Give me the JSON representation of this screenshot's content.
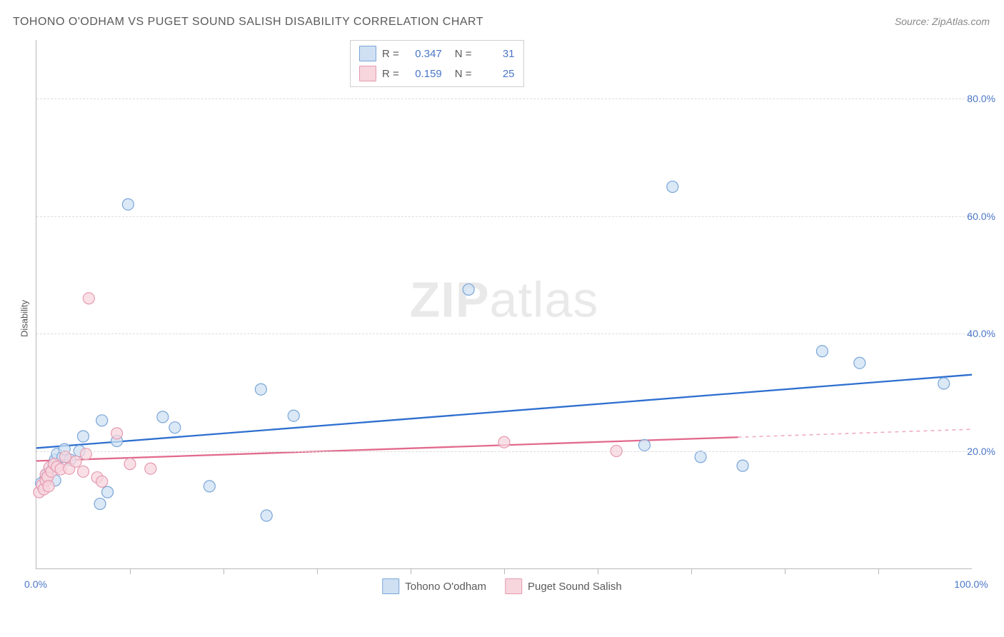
{
  "title": "TOHONO O'ODHAM VS PUGET SOUND SALISH DISABILITY CORRELATION CHART",
  "source": "Source: ZipAtlas.com",
  "yaxis_label": "Disability",
  "watermark": {
    "bold": "ZIP",
    "light": "atlas"
  },
  "chart": {
    "type": "scatter-with-regression",
    "xlim": [
      0,
      100
    ],
    "ylim": [
      0,
      90
    ],
    "ylabel_ticks": [
      20,
      40,
      60,
      80
    ],
    "ylabel_format_suffix": ".0%",
    "xlabel_ticks_pos": [
      0,
      100
    ],
    "xlabel_ticks_text": [
      "0.0%",
      "100.0%"
    ],
    "xtick_minor": [
      10,
      20,
      30,
      40,
      50,
      60,
      70,
      80,
      90
    ],
    "grid_color": "#dcdcdc",
    "axis_color": "#b8b8b8",
    "tick_color": "#4a76c7",
    "background_color": "#ffffff",
    "point_radius": 8,
    "point_stroke_width": 1.2,
    "line_width": 2.3,
    "series": [
      {
        "id": "tohono",
        "label": "Tohono O'odham",
        "fill": "#cfe0f3",
        "stroke": "#7aa6d8",
        "line_color": "#2e6fd0",
        "points": [
          [
            0.5,
            14.5
          ],
          [
            1,
            15.5
          ],
          [
            1.2,
            16.2
          ],
          [
            1.8,
            17.5
          ],
          [
            2,
            15.0
          ],
          [
            2,
            18.5
          ],
          [
            2.2,
            19.5
          ],
          [
            2.8,
            19.0
          ],
          [
            3.0,
            20.3
          ],
          [
            3.6,
            18.5
          ],
          [
            4.6,
            20.0
          ],
          [
            5.0,
            22.5
          ],
          [
            6.8,
            11.0
          ],
          [
            7.0,
            25.2
          ],
          [
            7.6,
            13.0
          ],
          [
            8.6,
            21.7
          ],
          [
            9.8,
            62.0
          ],
          [
            13.5,
            25.8
          ],
          [
            14.8,
            24.0
          ],
          [
            18.5,
            14.0
          ],
          [
            24.0,
            30.5
          ],
          [
            24.6,
            9.0
          ],
          [
            27.5,
            26.0
          ],
          [
            46.2,
            47.5
          ],
          [
            65.0,
            21.0
          ],
          [
            68.0,
            65.0
          ],
          [
            71.0,
            19.0
          ],
          [
            75.5,
            17.5
          ],
          [
            84.0,
            37.0
          ],
          [
            88.0,
            35.0
          ],
          [
            97.0,
            31.5
          ]
        ],
        "regression": {
          "x1": 0,
          "y1": 20.5,
          "x2": 100,
          "y2": 33.0,
          "x_solid_end": 100
        }
      },
      {
        "id": "salish",
        "label": "Puget Sound Salish",
        "fill": "#f7d6de",
        "stroke": "#e59ab0",
        "line_color": "#e26a8d",
        "points": [
          [
            0.3,
            13.0
          ],
          [
            0.6,
            14.2
          ],
          [
            0.8,
            13.5
          ],
          [
            1.0,
            16.0
          ],
          [
            1.0,
            15.0
          ],
          [
            1.2,
            15.6
          ],
          [
            1.3,
            14.0
          ],
          [
            1.4,
            17.2
          ],
          [
            1.6,
            16.5
          ],
          [
            1.9,
            17.8
          ],
          [
            2.2,
            17.3
          ],
          [
            2.6,
            16.9
          ],
          [
            3.1,
            19.0
          ],
          [
            3.5,
            17.0
          ],
          [
            4.2,
            18.2
          ],
          [
            5.0,
            16.5
          ],
          [
            5.3,
            19.5
          ],
          [
            5.6,
            46.0
          ],
          [
            6.5,
            15.5
          ],
          [
            7.0,
            14.8
          ],
          [
            8.6,
            23.0
          ],
          [
            10.0,
            17.8
          ],
          [
            12.2,
            17.0
          ],
          [
            50.0,
            21.5
          ],
          [
            62.0,
            20.0
          ]
        ],
        "regression": {
          "x1": 0,
          "y1": 18.3,
          "x2": 100,
          "y2": 23.7,
          "x_solid_end": 75
        }
      }
    ]
  },
  "stats": [
    {
      "series": "tohono",
      "R": "0.347",
      "N": "31"
    },
    {
      "series": "salish",
      "R": "0.159",
      "N": "25"
    }
  ],
  "stat_labels": {
    "R": "R =",
    "N": "N ="
  }
}
